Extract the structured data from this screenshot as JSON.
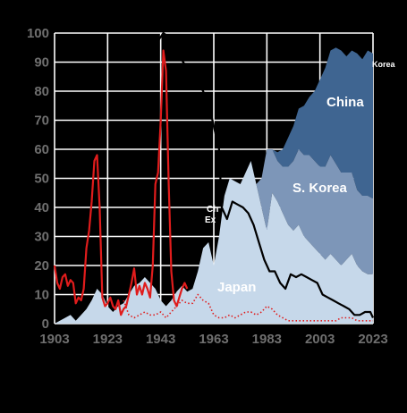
{
  "chart_data": {
    "type": "area",
    "title": "",
    "xlabel": "",
    "ylabel": "",
    "xlim": [
      1903,
      2023
    ],
    "ylim": [
      0,
      100
    ],
    "x_ticks": [
      "1903",
      "1923",
      "1943",
      "1963",
      "1983",
      "2003",
      "2023"
    ],
    "y_ticks": [
      "0",
      "10",
      "20",
      "30",
      "40",
      "50",
      "60",
      "70",
      "80",
      "90",
      "100"
    ],
    "grid": true,
    "colors": {
      "background": "#000000",
      "japan": "#c6d8ea",
      "s_korea": "#7d96b8",
      "china": "#3f6591",
      "red_solid": "#e01c1c",
      "red_dotted": "#e01c1c",
      "black_line": "#000000",
      "grid": "#ffffff",
      "tick_text": "#6f6f6f"
    },
    "stacked_areas": [
      {
        "name": "Japan",
        "x": [
          1903,
          1905,
          1907,
          1909,
          1911,
          1913,
          1915,
          1917,
          1919,
          1921,
          1923,
          1925,
          1927,
          1929,
          1931,
          1933,
          1935,
          1937,
          1939,
          1941,
          1943,
          1945,
          1947,
          1949,
          1951,
          1953,
          1955,
          1957,
          1959,
          1961,
          1963,
          1965,
          1967,
          1969,
          1971,
          1973,
          1975,
          1977,
          1979,
          1981,
          1983,
          1985,
          1987,
          1989,
          1991,
          1993,
          1995,
          1997,
          1999,
          2001,
          2003,
          2005,
          2007,
          2009,
          2011,
          2013,
          2015,
          2017,
          2019,
          2021,
          2023
        ],
        "values": [
          0,
          1,
          2,
          3,
          1,
          3,
          5,
          8,
          12,
          10,
          6,
          4,
          6,
          7,
          10,
          13,
          14,
          16,
          14,
          12,
          8,
          6,
          8,
          11,
          13,
          11,
          12,
          18,
          26,
          28,
          20,
          30,
          44,
          50,
          49,
          48,
          52,
          56,
          48,
          40,
          32,
          45,
          42,
          38,
          34,
          32,
          34,
          30,
          28,
          26,
          24,
          22,
          24,
          22,
          20,
          22,
          24,
          20,
          18,
          17,
          17
        ]
      },
      {
        "name": "S. Korea",
        "x": [
          1963,
          1965,
          1967,
          1969,
          1971,
          1973,
          1975,
          1977,
          1979,
          1981,
          1983,
          1985,
          1987,
          1989,
          1991,
          1993,
          1995,
          1997,
          1999,
          2001,
          2003,
          2005,
          2007,
          2009,
          2011,
          2013,
          2015,
          2017,
          2019,
          2021,
          2023
        ],
        "values": [
          0,
          0,
          0,
          0,
          0,
          0,
          0,
          0,
          0,
          10,
          28,
          15,
          14,
          16,
          20,
          24,
          26,
          28,
          30,
          30,
          30,
          32,
          34,
          33,
          32,
          30,
          28,
          26,
          26,
          27,
          26
        ]
      },
      {
        "name": "China",
        "x": [
          1963,
          1965,
          1967,
          1969,
          1971,
          1973,
          1975,
          1977,
          1979,
          1981,
          1983,
          1985,
          1987,
          1989,
          1991,
          1993,
          1995,
          1997,
          1999,
          2001,
          2003,
          2005,
          2007,
          2009,
          2011,
          2013,
          2015,
          2017,
          2019,
          2021,
          2023
        ],
        "values": [
          0,
          0,
          0,
          0,
          0,
          0,
          0,
          0,
          0,
          0,
          0,
          0,
          3,
          6,
          10,
          12,
          14,
          17,
          20,
          24,
          30,
          34,
          36,
          40,
          42,
          40,
          42,
          47,
          47,
          50,
          50
        ]
      }
    ],
    "series": [
      {
        "style": "red-solid",
        "x": [
          1903,
          1904,
          1905,
          1906,
          1907,
          1908,
          1909,
          1910,
          1911,
          1912,
          1913,
          1914,
          1915,
          1916,
          1917,
          1918,
          1919,
          1920,
          1921,
          1922,
          1923,
          1924,
          1925,
          1926,
          1927,
          1928,
          1929,
          1930,
          1931,
          1932,
          1933,
          1934,
          1935,
          1936,
          1937,
          1938,
          1939,
          1940,
          1941,
          1942,
          1943,
          1944,
          1945,
          1946,
          1947,
          1948,
          1949,
          1950,
          1951,
          1952,
          1953
        ],
        "values": [
          20,
          14,
          12,
          16,
          17,
          13,
          15,
          14,
          7,
          9,
          8,
          12,
          26,
          32,
          42,
          56,
          58,
          40,
          9,
          6,
          7,
          9,
          6,
          5,
          8,
          3,
          5,
          6,
          10,
          14,
          19,
          10,
          13,
          10,
          14,
          12,
          9,
          20,
          48,
          52,
          70,
          94,
          87,
          48,
          18,
          8,
          6,
          9,
          12,
          14,
          12
        ]
      },
      {
        "style": "red-dotted",
        "x": [
          1929,
          1931,
          1933,
          1935,
          1937,
          1939,
          1941,
          1943,
          1945,
          1947,
          1949,
          1951,
          1953,
          1955,
          1957,
          1959,
          1961,
          1963,
          1965,
          1967,
          1969,
          1971,
          1973,
          1975,
          1977,
          1979,
          1981,
          1983,
          1985,
          1987,
          1989,
          1991,
          1993,
          1995,
          1997,
          1999,
          2001,
          2003,
          2005,
          2007,
          2009,
          2011,
          2013,
          2015,
          2017,
          2019,
          2021,
          2023
        ],
        "values": [
          8,
          3,
          2,
          3,
          4,
          3,
          3,
          4,
          2,
          4,
          6,
          8,
          7,
          7,
          10,
          8,
          7,
          3,
          2,
          2,
          3,
          2,
          3,
          4,
          4,
          3,
          4,
          6,
          5,
          3,
          2,
          1,
          1,
          1,
          1,
          1,
          1,
          1,
          1,
          1,
          1,
          2,
          2,
          2,
          1,
          1,
          1,
          1
        ]
      },
      {
        "style": "black-solid",
        "x": [
          1941,
          1944,
          1947,
          1950,
          1953,
          1956,
          1959,
          1962,
          1965,
          1966,
          1968,
          1970,
          1972,
          1974,
          1976,
          1978,
          1980,
          1982,
          1984,
          1986,
          1988,
          1990,
          1992,
          1994,
          1996,
          1998,
          2000,
          2002,
          2004,
          2006,
          2008,
          2010,
          2012,
          2014,
          2016,
          2018,
          2020,
          2022,
          2023
        ],
        "values": [
          96,
          100,
          98,
          92,
          88,
          84,
          80,
          72,
          60,
          40,
          36,
          42,
          41,
          40,
          38,
          34,
          28,
          22,
          18,
          18,
          14,
          12,
          17,
          16,
          17,
          16,
          15,
          14,
          10,
          9,
          8,
          7,
          6,
          5,
          3,
          3,
          4,
          4,
          2
        ]
      }
    ],
    "annotations": {
      "japan": "Japan",
      "s_korea": "S. Korea",
      "china": "China",
      "korea_tag": "Korea",
      "clipped_a": "Ch",
      "clipped_b": "Ex"
    }
  }
}
